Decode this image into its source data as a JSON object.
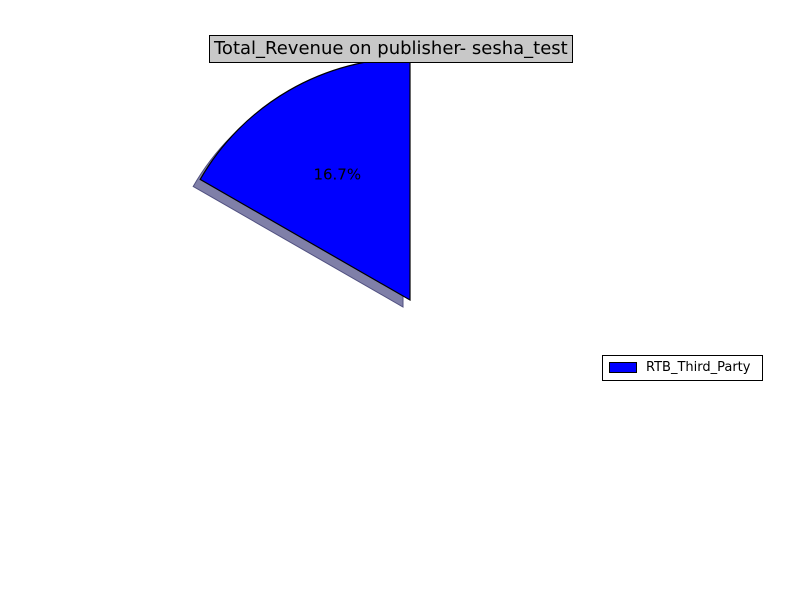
{
  "chart_data": {
    "type": "pie",
    "title": "Total_Revenue on publisher- sesha_test",
    "slices": [
      {
        "label": "RTB_Third_Party",
        "percent": 16.7,
        "value_label": "16.7%",
        "color": "#0000ff"
      }
    ],
    "shadow": true,
    "shadow_color": "#7f7fa8",
    "legend": {
      "placement": "right",
      "entries": [
        "RTB_Third_Party"
      ]
    }
  }
}
